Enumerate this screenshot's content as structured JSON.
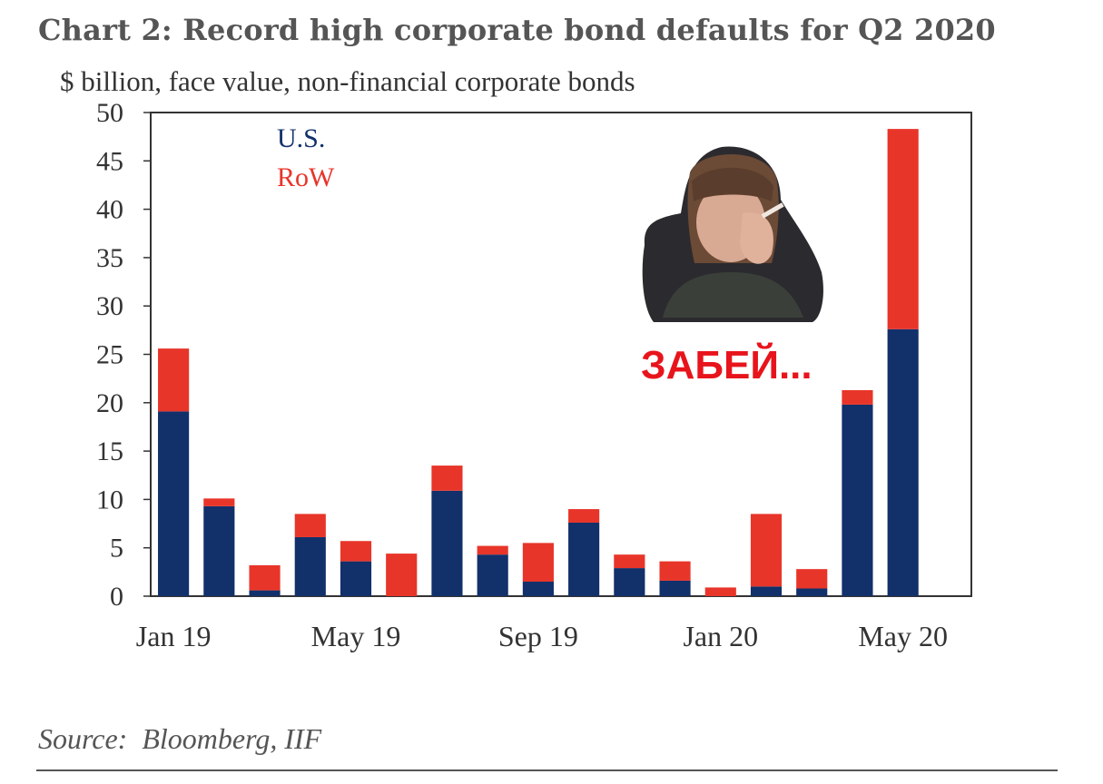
{
  "header": {
    "title": "Chart 2: Record high corporate bond defaults for Q2 2020",
    "subtitle": "$ billion, face value, non-financial corporate bonds"
  },
  "footer": {
    "source": "Source:  Bloomberg, IIF"
  },
  "overlay": {
    "caption": "ЗАБЕЙ...",
    "picture": "woman-portrait-image"
  },
  "colors": {
    "us": "#12306a",
    "row": "#e8352a",
    "axis": "#333333",
    "text": "#333333"
  },
  "chart_data": {
    "type": "bar",
    "stacked": true,
    "title": "Chart 2: Record high corporate bond defaults for Q2 2020",
    "ylabel": "$ billion, face value, non-financial corporate bonds",
    "ylim": [
      0,
      50
    ],
    "yticks": [
      0,
      5,
      10,
      15,
      20,
      25,
      30,
      35,
      40,
      45,
      50
    ],
    "xtick_labels": [
      "Jan 19",
      "May 19",
      "Sep 19",
      "Jan 20",
      "May 20"
    ],
    "categories": [
      "Jan 19",
      "Feb 19",
      "Mar 19",
      "Apr 19",
      "May 19",
      "Jun 19",
      "Jul 19",
      "Aug 19",
      "Sep 19",
      "Oct 19",
      "Nov 19",
      "Dec 19",
      "Jan 20",
      "Feb 20",
      "Mar 20",
      "Apr 20",
      "May 20",
      "Jun 20"
    ],
    "series": [
      {
        "name": "U.S.",
        "values": [
          19.1,
          9.3,
          0.6,
          6.1,
          3.6,
          0.0,
          10.9,
          4.3,
          1.5,
          7.6,
          2.9,
          1.6,
          0.0,
          1.0,
          0.8,
          19.8,
          27.6,
          0
        ]
      },
      {
        "name": "RoW",
        "values": [
          6.5,
          0.8,
          2.6,
          2.4,
          2.1,
          4.4,
          2.6,
          0.9,
          4.0,
          1.4,
          1.4,
          2.0,
          0.9,
          7.5,
          2.0,
          1.5,
          20.7,
          0
        ]
      }
    ],
    "legend": "top-left",
    "grid": false
  }
}
